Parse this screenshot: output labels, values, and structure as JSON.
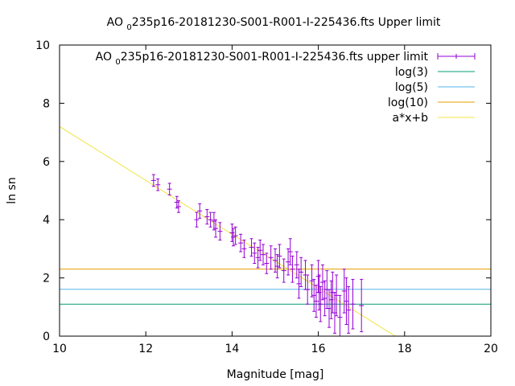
{
  "chart_data": {
    "type": "scatter",
    "title_main": "AO ",
    "title_sub": "0",
    "title_rest": "235p16-20181230-S001-R001-I-225436.fts Upper limit",
    "xlabel": "Magnitude [mag]",
    "ylabel": "ln sn",
    "xlim": [
      10,
      20
    ],
    "ylim": [
      0,
      10
    ],
    "xticks": [
      "10",
      "12",
      "14",
      "16",
      "18",
      "20"
    ],
    "yticks": [
      "0",
      "2",
      "4",
      "6",
      "8",
      "10"
    ],
    "legend_position": "top-right",
    "grid": false,
    "series": [
      {
        "name_main": "AO ",
        "name_sub": "0",
        "name_rest": "235p16-20181230-S001-R001-I-225436.fts upper limit",
        "kind": "errorbars",
        "color": "#9400d3",
        "x": [
          12.18,
          12.28,
          12.55,
          12.72,
          12.76,
          13.18,
          13.25,
          13.42,
          13.5,
          13.58,
          13.62,
          13.72,
          14.0,
          14.03,
          14.08,
          14.2,
          14.28,
          14.45,
          14.52,
          14.6,
          14.65,
          14.72,
          14.8,
          14.9,
          15.0,
          15.05,
          15.1,
          15.2,
          15.3,
          15.35,
          15.4,
          15.5,
          15.55,
          15.6,
          15.7,
          15.75,
          15.85,
          15.9,
          15.95,
          16.0,
          16.02,
          16.05,
          16.1,
          16.15,
          16.2,
          16.25,
          16.3,
          16.33,
          16.38,
          16.42,
          16.5,
          16.6,
          16.65,
          16.7,
          16.8,
          17.0
        ],
        "y": [
          5.35,
          5.2,
          5.05,
          4.6,
          4.45,
          4.0,
          4.3,
          4.1,
          4.0,
          3.95,
          3.7,
          3.6,
          3.55,
          3.4,
          3.45,
          3.2,
          3.0,
          3.05,
          2.85,
          2.7,
          2.95,
          2.8,
          2.5,
          2.7,
          2.6,
          2.4,
          2.75,
          2.25,
          2.55,
          2.9,
          2.3,
          2.45,
          1.8,
          2.2,
          2.1,
          1.6,
          1.9,
          1.4,
          1.2,
          2.05,
          1.5,
          1.1,
          1.85,
          1.3,
          1.6,
          0.95,
          1.25,
          1.5,
          0.8,
          1.4,
          0.65,
          1.55,
          1.2,
          0.9,
          1.1,
          1.05
        ],
        "yerr": [
          0.2,
          0.2,
          0.2,
          0.2,
          0.2,
          0.25,
          0.25,
          0.25,
          0.25,
          0.3,
          0.3,
          0.3,
          0.3,
          0.3,
          0.3,
          0.3,
          0.3,
          0.3,
          0.35,
          0.35,
          0.35,
          0.35,
          0.35,
          0.4,
          0.4,
          0.4,
          0.4,
          0.4,
          0.45,
          0.45,
          0.45,
          0.45,
          0.5,
          0.5,
          0.5,
          0.5,
          0.55,
          0.55,
          0.55,
          0.55,
          0.6,
          0.6,
          0.6,
          0.6,
          0.65,
          0.65,
          0.65,
          0.7,
          0.7,
          0.7,
          0.75,
          0.75,
          0.8,
          0.8,
          0.85,
          0.9
        ]
      },
      {
        "name": "log(3)",
        "kind": "hline",
        "value": 1.0986,
        "color": "#009e73"
      },
      {
        "name": "log(5)",
        "kind": "hline",
        "value": 1.6094,
        "color": "#56b4e9"
      },
      {
        "name": "log(10)",
        "kind": "hline",
        "value": 2.3026,
        "color": "#e69f00"
      },
      {
        "name": "a*x+b",
        "kind": "line",
        "slope": -0.925,
        "intercept": 16.45,
        "color": "#f0e442"
      }
    ]
  }
}
